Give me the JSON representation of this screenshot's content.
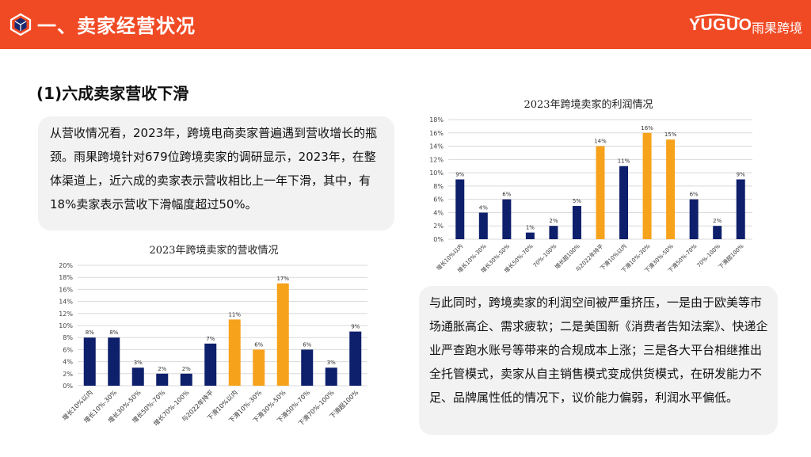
{
  "header": {
    "title": "一、卖家经营状况",
    "logo_text": "YUGUO",
    "logo_cn": "雨果跨境",
    "icon": "cube-hexagon-icon",
    "bg_color": "#f04a24"
  },
  "section": {
    "title": "(1)六成卖家营收下滑"
  },
  "paragraph1": "从营收情况看，2023年，跨境电商卖家普遍遇到营收增长的瓶颈。雨果跨境针对679位跨境卖家的调研显示，2023年，在整体渠道上，近六成的卖家表示营收相比上一年下滑，其中，有18%卖家表示营收下滑幅度超过50%。",
  "paragraph2": "与此同时，跨境卖家的利润空间被严重挤压，一是由于欧美等市场通胀高企、需求疲软；二是美国新《消费者告知法案》、快递企业严查跑水账号等带来的合规成本上涨；三是各大平台相继推出全托管模式，卖家从自主销售模式变成供货模式，在研发能力不足、品牌属性低的情况下，议价能力偏弱，利润水平偏低。",
  "colors": {
    "navy": "#0e1f6b",
    "orange": "#f7a21b",
    "grid": "#d9d9d9"
  },
  "chart_data": [
    {
      "type": "bar",
      "title": "2023年跨境卖家的营收情况",
      "categories": [
        "增长10%以内",
        "增长10%-30%",
        "增长30%-50%",
        "增长50%-70%",
        "增长70%-100%",
        "与2022年持平",
        "下滑10%以内",
        "下滑10%-30%",
        "下滑30%-50%",
        "下滑50%-70%",
        "下滑70%-100%",
        "下滑超100%"
      ],
      "values": [
        8,
        8,
        3,
        2,
        2,
        7,
        11,
        6,
        17,
        6,
        3,
        9
      ],
      "labels": [
        "8%",
        "8%",
        "3%",
        "2%",
        "2%",
        "7%",
        "11%",
        "6%",
        "17%",
        "6%",
        "3%",
        "9%"
      ],
      "highlight": [
        6,
        7,
        8
      ],
      "ylim": [
        0,
        20
      ],
      "ytick_labels": [
        "0%",
        "2%",
        "4%",
        "6%",
        "8%",
        "10%",
        "12%",
        "14%",
        "16%",
        "18%",
        "20%"
      ]
    },
    {
      "type": "bar",
      "title": "2023年跨境卖家的利润情况",
      "categories": [
        "增长10%以内",
        "增长10%-30%",
        "增长30%-50%",
        "增长50%-70%",
        "70%-100%",
        "增长超100%",
        "与2022年持平",
        "下滑10%以内",
        "下滑10%-30%",
        "下滑30%-50%",
        "下滑50%-70%",
        "70%-100%",
        "下滑超100%"
      ],
      "values": [
        9,
        4,
        6,
        1,
        2,
        5,
        14,
        11,
        16,
        15,
        6,
        2,
        9
      ],
      "labels": [
        "9%",
        "4%",
        "6%",
        "1%",
        "2%",
        "5%",
        "14%",
        "11%",
        "16%",
        "15%",
        "6%",
        "2%",
        "9%"
      ],
      "highlight": [
        6,
        8,
        9
      ],
      "ylim": [
        0,
        18
      ],
      "ytick_labels": [
        "0%",
        "2%",
        "4%",
        "6%",
        "8%",
        "10%",
        "12%",
        "14%",
        "16%",
        "18%"
      ]
    }
  ]
}
